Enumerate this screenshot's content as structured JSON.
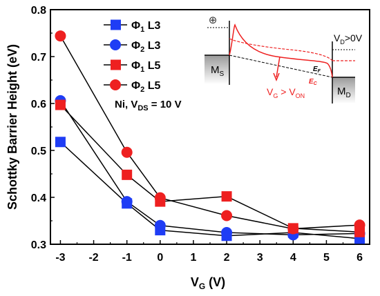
{
  "chart_data": {
    "type": "line",
    "xlabel": "V",
    "xlabel_sub": "G",
    "xlabel_unit": " (V)",
    "ylabel": "Schottky Barrier Height (eV)",
    "xlim": [
      -3.3,
      6.3
    ],
    "ylim": [
      0.3,
      0.8
    ],
    "x_ticks": [
      "-3",
      "-2",
      "-1",
      "0",
      "1",
      "2",
      "3",
      "4",
      "5",
      "6"
    ],
    "y_ticks": [
      "0.3",
      "0.4",
      "0.5",
      "0.6",
      "0.7",
      "0.8"
    ],
    "x": [
      -3,
      -1,
      0,
      2,
      4,
      6
    ],
    "series": [
      {
        "name": "Φ1 L3",
        "sym": "Φ",
        "sub": "1",
        "tail": " L3",
        "color": "#1f3df5",
        "marker": "square",
        "values": [
          0.518,
          0.387,
          0.33,
          0.318,
          0.325,
          0.312
        ]
      },
      {
        "name": "Φ2 L3",
        "sym": "Φ",
        "sub": "2",
        "tail": " L3",
        "color": "#1f3df5",
        "marker": "circle",
        "values": [
          0.606,
          0.391,
          0.34,
          0.325,
          0.32,
          0.323
        ]
      },
      {
        "name": "Φ1 L5",
        "sym": "Φ",
        "sub": "1",
        "tail": " L5",
        "color": "#ee2020",
        "marker": "square",
        "values": [
          0.597,
          0.448,
          0.391,
          0.402,
          0.334,
          0.326
        ]
      },
      {
        "name": "Φ2 L5",
        "sym": "Φ",
        "sub": "2",
        "tail": " L5",
        "color": "#ee2020",
        "marker": "circle",
        "values": [
          0.744,
          0.496,
          0.399,
          0.361,
          0.333,
          0.341
        ]
      }
    ],
    "annotation": {
      "pre": "Ni, V",
      "sub": "DS",
      "post": " = 10 V"
    },
    "legend_position": "top-left",
    "grid": false,
    "inset": {
      "ms_pre": "M",
      "ms_sub": "S",
      "md_pre": "M",
      "md_sub": "D",
      "vd_pre": "V",
      "vd_sub": "D",
      "vd_post": ">0V",
      "vg_pre": "V",
      "vg_sub": "G",
      "vg_mid": " > V",
      "vg_sub2": "ON",
      "ef_pre": "E",
      "ef_sub": "F",
      "ec_pre": "E",
      "ec_sub": "C",
      "hole_symbol": "⊕"
    }
  }
}
